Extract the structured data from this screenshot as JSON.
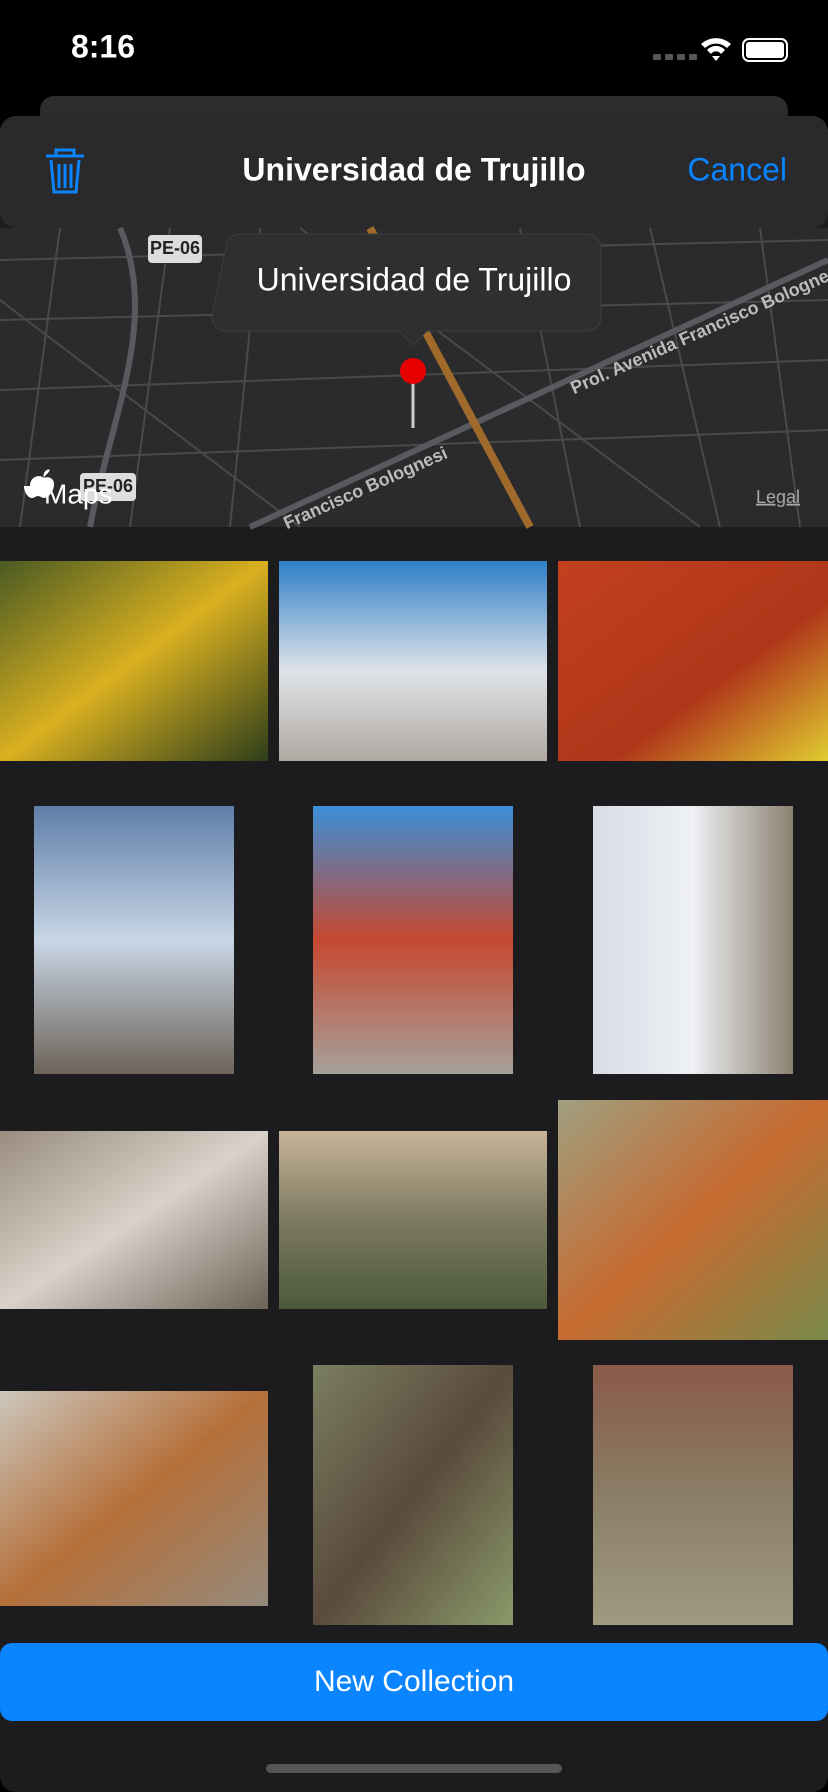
{
  "status": {
    "time": "8:16"
  },
  "nav": {
    "title": "Universidad de Trujillo",
    "cancel": "Cancel"
  },
  "map": {
    "callout": "Universidad de Trujillo",
    "labels": [
      "PE-06",
      "PE-06",
      "Prol. Avenida Francisco Bolognesi",
      "Francisco Bolognesi"
    ],
    "attribution": "Maps",
    "legal": "Legal"
  },
  "button": {
    "label": "New Collection"
  }
}
